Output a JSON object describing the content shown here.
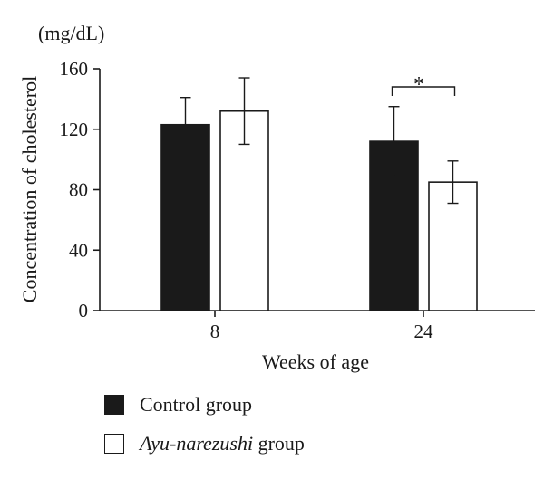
{
  "chart_data": {
    "type": "bar",
    "unit_label": "(mg/dL)",
    "ylabel": "Concentration of cholesterol",
    "xlabel": "Weeks of age",
    "categories": [
      "8",
      "24"
    ],
    "ylim": [
      0,
      160
    ],
    "yticks": [
      "0",
      "40",
      "80",
      "120",
      "160"
    ],
    "series": [
      {
        "name": "Control group",
        "color": "#1a1a1a",
        "values": [
          123,
          112
        ],
        "errors": [
          18,
          23
        ]
      },
      {
        "name_italic": "Ayu-narezushi",
        "name_rest": " group",
        "color": "#ffffff",
        "values": [
          132,
          85
        ],
        "errors": [
          22,
          14
        ]
      }
    ],
    "significance": {
      "category_index": 1,
      "label": "*"
    },
    "grid": false,
    "legend_position": "bottom-left"
  }
}
